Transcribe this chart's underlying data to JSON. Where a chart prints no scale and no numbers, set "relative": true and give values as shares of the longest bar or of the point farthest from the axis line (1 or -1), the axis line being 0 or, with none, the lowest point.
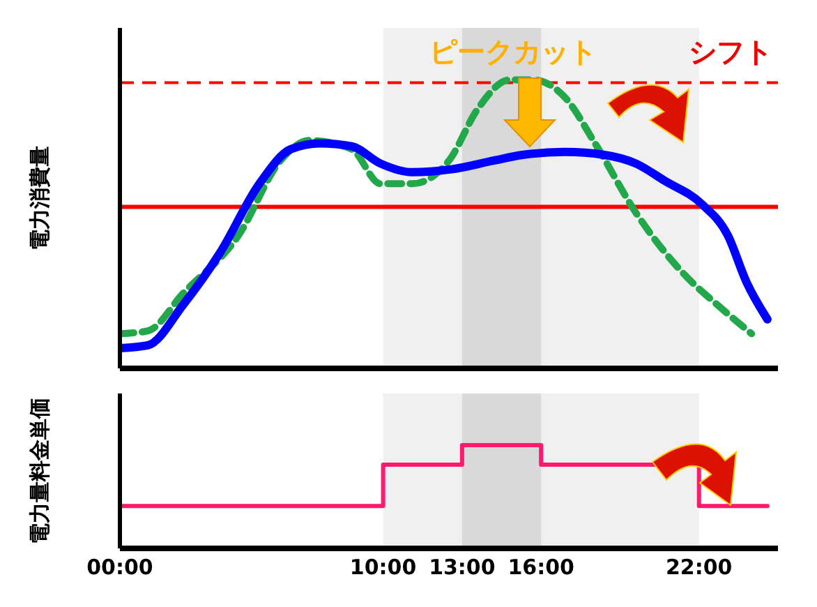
{
  "chart_data": [
    {
      "type": "line",
      "ylabel": "電力消費量",
      "relative": true,
      "xlim": [
        0,
        25
      ],
      "tick_labels": false,
      "marker": "none",
      "series": [
        {
          "color": "#22a84a",
          "line_style": "dashed",
          "x": [
            0,
            1.06,
            2.4,
            4.5,
            6.1,
            7.2,
            8.8,
            9.9,
            11.1,
            12.5,
            13.6,
            14.8,
            15.7,
            16.9,
            18.05,
            19.6,
            21.5,
            22.7,
            24
          ],
          "values": [
            0.12,
            0.13,
            0.26,
            0.46,
            0.72,
            0.79,
            0.76,
            0.64,
            0.64,
            0.72,
            0.9,
            1.0,
            1.0,
            0.94,
            0.78,
            0.54,
            0.32,
            0.22,
            0.12
          ]
        },
        {
          "color": "#0000ff",
          "line_style": "solid",
          "x": [
            0,
            1.06,
            2.4,
            3.8,
            5.3,
            6.5,
            7.6,
            8.8,
            9.9,
            11.1,
            12.6,
            14.2,
            15.3,
            16.9,
            18.4,
            19.6,
            20.7,
            22.1,
            23.1,
            23.8,
            24.6
          ],
          "values": [
            0.07,
            0.08,
            0.22,
            0.4,
            0.64,
            0.76,
            0.78,
            0.77,
            0.71,
            0.68,
            0.69,
            0.72,
            0.74,
            0.75,
            0.74,
            0.71,
            0.65,
            0.57,
            0.46,
            0.3,
            0.17
          ]
        }
      ],
      "ref_lines": [
        {
          "axis": "y",
          "value": 0.99,
          "color": "#ff0000",
          "line_style": "dashed"
        },
        {
          "axis": "y",
          "value": 0.56,
          "color": "#ff0000",
          "line_style": "solid"
        }
      ],
      "bands": [
        {
          "axis": "x",
          "from": 10,
          "to": 22,
          "color": "#f0f0f0"
        },
        {
          "axis": "x",
          "from": 13,
          "to": 16,
          "color": "#d9d9d9"
        }
      ],
      "annotations": [
        "ピークカット",
        "シフト"
      ]
    },
    {
      "type": "step",
      "ylabel": "電力量料金単価",
      "relative": true,
      "xlim": [
        0,
        25
      ],
      "tick_labels": "x",
      "xticks": [
        {
          "value": 0,
          "label": "00:00"
        },
        {
          "value": 10,
          "label": "10:00"
        },
        {
          "value": 13,
          "label": "13:00"
        },
        {
          "value": 16,
          "label": "16:00"
        },
        {
          "value": 22,
          "label": "22:00"
        }
      ],
      "x": [
        0,
        10,
        13,
        16,
        22,
        24.6
      ],
      "series": [
        {
          "color": "#ff1a6e",
          "values": [
            0.41,
            0.81,
            1.0,
            0.81,
            0.41,
            0.41
          ]
        }
      ],
      "bands": [
        {
          "axis": "x",
          "from": 10,
          "to": 22,
          "color": "#f0f0f0"
        },
        {
          "axis": "x",
          "from": 13,
          "to": 16,
          "color": "#d9d9d9"
        }
      ]
    }
  ]
}
